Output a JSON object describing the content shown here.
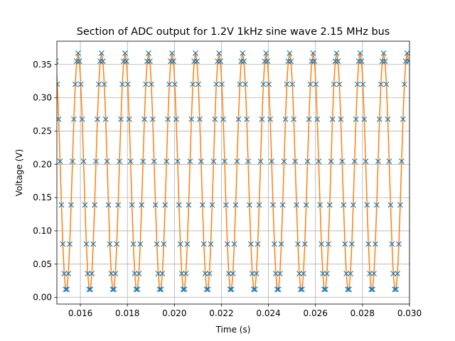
{
  "chart_data": {
    "type": "line",
    "title": "Section of ADC output for 1.2V 1kHz sine wave 2.15 MHz bus",
    "xlabel": "Time (s)",
    "ylabel": "Voltage (V)",
    "xlim": [
      0.015,
      0.03
    ],
    "ylim": [
      -0.01,
      0.385
    ],
    "x_ticks": [
      0.016,
      0.018,
      0.02,
      0.022,
      0.024,
      0.026,
      0.028,
      0.03
    ],
    "x_tick_labels": [
      "0.016",
      "0.018",
      "0.020",
      "0.022",
      "0.024",
      "0.026",
      "0.028",
      "0.030"
    ],
    "y_ticks": [
      0.0,
      0.05,
      0.1,
      0.15,
      0.2,
      0.25,
      0.3,
      0.35
    ],
    "y_tick_labels": [
      "0.00",
      "0.05",
      "0.10",
      "0.15",
      "0.20",
      "0.25",
      "0.30",
      "0.35"
    ],
    "grid": true,
    "signal": {
      "kind": "sine",
      "offset": 0.188,
      "amplitude": 0.179,
      "period": 0.001,
      "peak_time": 0.0169,
      "samples_per_period": 17
    },
    "series": [
      {
        "style": "cross-markers",
        "color": "#1f77b4"
      },
      {
        "style": "line",
        "color": "#ff7f0e"
      }
    ]
  }
}
